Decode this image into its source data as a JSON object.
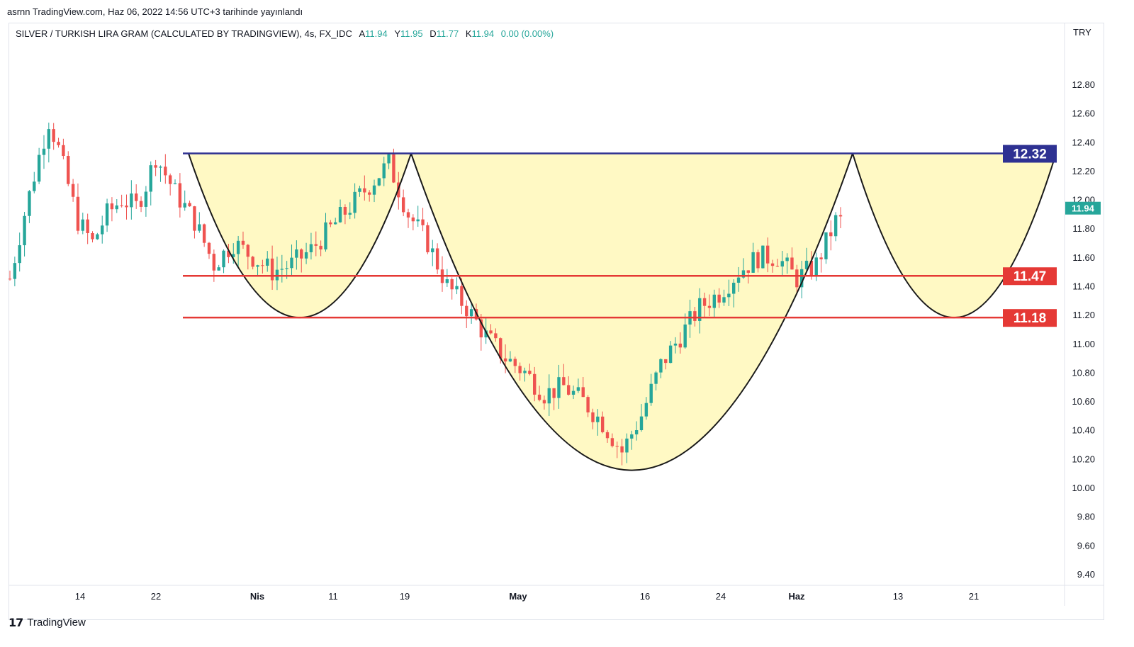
{
  "header": {
    "published": "asrnn TradingView.com, Haz 06, 2022 14:56 UTC+3 tarihinde yayınlandı"
  },
  "legend": {
    "symbol": "SILVER / TURKISH LIRA GRAM (CALCULATED BY TRADINGVIEW), 4s, FX_IDC",
    "open_label": "A",
    "open": "11.94",
    "high_label": "Y",
    "high": "11.95",
    "low_label": "D",
    "low": "11.77",
    "close_label": "K",
    "close": "11.94",
    "change": "0.00 (0.00%)"
  },
  "currency": "TRY",
  "footer": {
    "brand": "TradingView",
    "logo_icon": "tradingview-logo-icon"
  },
  "colors": {
    "up": "#26a69a",
    "down": "#ef5350",
    "fill": "#fff9c4",
    "resistance": "#2e3192",
    "support": "#e53935",
    "price_tag": "#26a69a"
  },
  "chart_data": {
    "type": "candlestick",
    "y_ticks": [
      "12.80",
      "12.60",
      "12.40",
      "12.20",
      "12.00",
      "11.80",
      "11.60",
      "11.40",
      "11.20",
      "11.00",
      "10.80",
      "10.60",
      "10.40",
      "10.20",
      "10.00",
      "9.80",
      "9.60",
      "9.40"
    ],
    "x_ticks": [
      {
        "label": "14",
        "bold": false
      },
      {
        "label": "22",
        "bold": false
      },
      {
        "label": "Nis",
        "bold": true
      },
      {
        "label": "11",
        "bold": false
      },
      {
        "label": "19",
        "bold": false
      },
      {
        "label": "May",
        "bold": true
      },
      {
        "label": "16",
        "bold": false
      },
      {
        "label": "24",
        "bold": false
      },
      {
        "label": "Haz",
        "bold": true
      },
      {
        "label": "13",
        "bold": false
      },
      {
        "label": "21",
        "bold": false
      }
    ],
    "ylim": [
      9.37,
      13.1
    ],
    "last_price": "11.94",
    "levels": [
      {
        "value": "12.32",
        "kind": "resistance"
      },
      {
        "value": "11.47",
        "kind": "support"
      },
      {
        "value": "11.18",
        "kind": "support"
      }
    ],
    "price_path": [
      [
        0,
        11.45
      ],
      [
        3,
        11.9
      ],
      [
        6,
        12.3
      ],
      [
        8,
        12.55
      ],
      [
        10,
        12.35
      ],
      [
        12,
        12.1
      ],
      [
        14,
        11.85
      ],
      [
        17,
        11.7
      ],
      [
        20,
        11.9
      ],
      [
        23,
        12.0
      ],
      [
        26,
        11.95
      ],
      [
        28,
        12.1
      ],
      [
        30,
        12.3
      ],
      [
        34,
        12.05
      ],
      [
        38,
        11.85
      ],
      [
        42,
        11.55
      ],
      [
        46,
        11.7
      ],
      [
        50,
        11.6
      ],
      [
        54,
        11.5
      ],
      [
        58,
        11.55
      ],
      [
        62,
        11.65
      ],
      [
        66,
        11.8
      ],
      [
        70,
        11.95
      ],
      [
        74,
        12.1
      ],
      [
        78,
        12.25
      ],
      [
        82,
        11.9
      ],
      [
        86,
        11.7
      ],
      [
        90,
        11.4
      ],
      [
        94,
        11.25
      ],
      [
        98,
        11.05
      ],
      [
        102,
        10.9
      ],
      [
        106,
        10.8
      ],
      [
        110,
        10.65
      ],
      [
        114,
        10.7
      ],
      [
        118,
        10.6
      ],
      [
        122,
        10.45
      ],
      [
        126,
        10.25
      ],
      [
        130,
        10.5
      ],
      [
        134,
        10.85
      ],
      [
        138,
        11.05
      ],
      [
        142,
        11.25
      ],
      [
        146,
        11.35
      ],
      [
        150,
        11.5
      ],
      [
        154,
        11.6
      ],
      [
        158,
        11.6
      ],
      [
        162,
        11.45
      ],
      [
        166,
        11.55
      ],
      [
        170,
        11.85
      ]
    ]
  }
}
